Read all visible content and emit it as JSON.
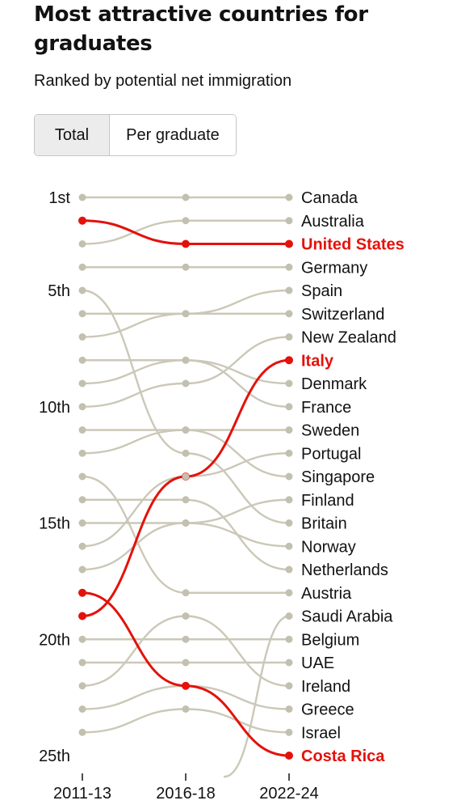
{
  "header": {
    "title": "Most attractive countries for graduates",
    "subtitle": "Ranked by potential net immigration"
  },
  "tabs": [
    {
      "label": "Total",
      "selected": true
    },
    {
      "label": "Per graduate",
      "selected": false
    }
  ],
  "colors": {
    "highlight": "#e3120b",
    "line": "#cbc8b8",
    "dot": "#c3c0b0",
    "text": "#121212"
  },
  "chart_data": {
    "type": "line",
    "subtype": "bump",
    "x": [
      "2011-13",
      "2016-18",
      "2022-24"
    ],
    "y_tick_labels": [
      {
        "rank": 1,
        "label": "1st"
      },
      {
        "rank": 5,
        "label": "5th"
      },
      {
        "rank": 10,
        "label": "10th"
      },
      {
        "rank": 15,
        "label": "15th"
      },
      {
        "rank": 20,
        "label": "20th"
      },
      {
        "rank": 25,
        "label": "25th"
      }
    ],
    "y_range": [
      1,
      25
    ],
    "y_reversed": true,
    "legend": "none",
    "series": [
      {
        "name": "Canada",
        "ranks": [
          1,
          1,
          1
        ],
        "highlight": false
      },
      {
        "name": "Australia",
        "ranks": [
          3,
          2,
          2
        ],
        "highlight": false
      },
      {
        "name": "United States",
        "ranks": [
          2,
          3,
          3
        ],
        "highlight": true
      },
      {
        "name": "Germany",
        "ranks": [
          4,
          4,
          4
        ],
        "highlight": false
      },
      {
        "name": "Spain",
        "ranks": [
          7,
          6,
          5
        ],
        "highlight": false
      },
      {
        "name": "Switzerland",
        "ranks": [
          6,
          6,
          6
        ],
        "highlight": false
      },
      {
        "name": "New Zealand",
        "ranks": [
          10,
          9,
          7
        ],
        "highlight": false
      },
      {
        "name": "Italy",
        "ranks": [
          19,
          13,
          8
        ],
        "highlight": true
      },
      {
        "name": "Denmark",
        "ranks": [
          9,
          8,
          9
        ],
        "highlight": false
      },
      {
        "name": "France",
        "ranks": [
          8,
          8,
          10
        ],
        "highlight": false
      },
      {
        "name": "Sweden",
        "ranks": [
          12,
          11,
          11
        ],
        "highlight": false
      },
      {
        "name": "Portugal",
        "ranks": [
          16,
          13,
          12
        ],
        "highlight": false
      },
      {
        "name": "Singapore",
        "ranks": [
          11,
          11,
          13
        ],
        "highlight": false
      },
      {
        "name": "Finland",
        "ranks": [
          17,
          15,
          14
        ],
        "highlight": false
      },
      {
        "name": "Britain",
        "ranks": [
          5,
          12,
          15
        ],
        "highlight": false
      },
      {
        "name": "Norway",
        "ranks": [
          15,
          15,
          16
        ],
        "highlight": false
      },
      {
        "name": "Netherlands",
        "ranks": [
          14,
          14,
          17
        ],
        "highlight": false
      },
      {
        "name": "Austria",
        "ranks": [
          13,
          18,
          18
        ],
        "highlight": false
      },
      {
        "name": "Saudi Arabia",
        "ranks": [
          null,
          null,
          19
        ],
        "highlight": false
      },
      {
        "name": "Belgium",
        "ranks": [
          20,
          20,
          20
        ],
        "highlight": false
      },
      {
        "name": "UAE",
        "ranks": [
          21,
          21,
          21
        ],
        "highlight": false
      },
      {
        "name": "Ireland",
        "ranks": [
          22,
          19,
          22
        ],
        "highlight": false
      },
      {
        "name": "Greece",
        "ranks": [
          23,
          22,
          23
        ],
        "highlight": false
      },
      {
        "name": "Israel",
        "ranks": [
          24,
          23,
          24
        ],
        "highlight": false
      },
      {
        "name": "Costa Rica",
        "ranks": [
          18,
          22,
          25
        ],
        "highlight": true
      }
    ]
  }
}
